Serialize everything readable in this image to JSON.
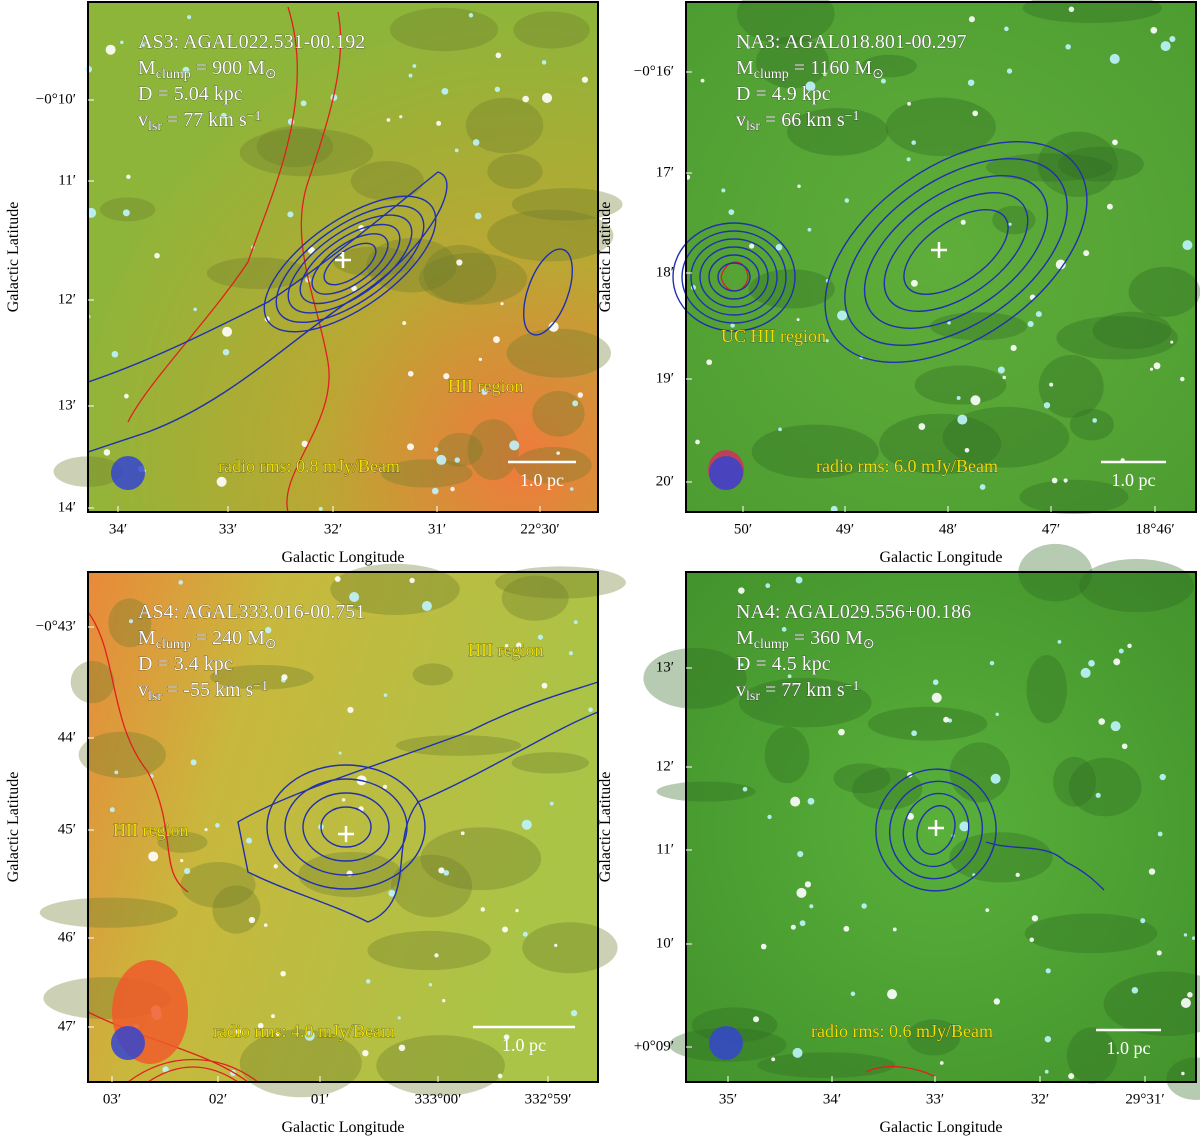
{
  "figure": {
    "panels": [
      {
        "info": [
          [
            {
              "t": "AS3: AGAL022.531-00.192"
            }
          ],
          [
            {
              "t": "M"
            },
            {
              "t": "clump",
              "sub": true
            },
            {
              "t": " = 900 M"
            },
            {
              "t": "⊙",
              "sub": true
            }
          ],
          [
            {
              "t": "D = 5.04 kpc"
            }
          ],
          [
            {
              "t": "v"
            },
            {
              "t": "lsr",
              "sub": true
            },
            {
              "t": " = 77 km s"
            },
            {
              "t": "−1",
              "sup": true
            }
          ]
        ],
        "annotations": [
          "HII region"
        ],
        "rms": "radio rms: 0.8 mJy/Beam",
        "scale": "1.0 pc",
        "yticks": [
          "−0°10′",
          "11′",
          "12′",
          "13′",
          "14′"
        ],
        "xticks": [
          "34′",
          "33′",
          "32′",
          "31′",
          "22°30′"
        ],
        "xlabel": "Galactic Longitude",
        "ylabel": "Galactic Latitude"
      },
      {
        "info": [
          [
            {
              "t": "NA3: AGAL018.801-00.297"
            }
          ],
          [
            {
              "t": "M"
            },
            {
              "t": "clump",
              "sub": true
            },
            {
              "t": " = 1160 M"
            },
            {
              "t": "⊙",
              "sub": true
            }
          ],
          [
            {
              "t": "D = 4.9 kpc"
            }
          ],
          [
            {
              "t": "v"
            },
            {
              "t": "lsr",
              "sub": true
            },
            {
              "t": " = 66 km s"
            },
            {
              "t": "−1",
              "sup": true
            }
          ]
        ],
        "annotations": [
          "UC HII region"
        ],
        "rms": "radio rms: 6.0 mJy/Beam",
        "scale": "1.0 pc",
        "yticks": [
          "−0°16′",
          "17′",
          "18′",
          "19′",
          "20′"
        ],
        "xticks": [
          "50′",
          "49′",
          "48′",
          "47′",
          "18°46′"
        ],
        "xlabel": "Galactic Longitude",
        "ylabel": "Galactic Latitude"
      },
      {
        "info": [
          [
            {
              "t": "AS4: AGAL333.016-00.751"
            }
          ],
          [
            {
              "t": "M"
            },
            {
              "t": "clump",
              "sub": true
            },
            {
              "t": " = 240 M"
            },
            {
              "t": "⊙",
              "sub": true
            }
          ],
          [
            {
              "t": "D = 3.4 kpc"
            }
          ],
          [
            {
              "t": "v"
            },
            {
              "t": "lsr",
              "sub": true
            },
            {
              "t": " = -55 km s"
            },
            {
              "t": "−1",
              "sup": true
            }
          ]
        ],
        "annotations": [
          "HII region",
          "HII region"
        ],
        "rms": "radio rms: 4.0 mJy/Beam",
        "scale": "1.0 pc",
        "yticks": [
          "−0°43′",
          "44′",
          "45′",
          "46′",
          "47′"
        ],
        "xticks": [
          "03′",
          "02′",
          "01′",
          "333°00′",
          "332°59′"
        ],
        "xlabel": "Galactic Longitude",
        "ylabel": "Galactic Latitude"
      },
      {
        "info": [
          [
            {
              "t": "NA4: AGAL029.556+00.186"
            }
          ],
          [
            {
              "t": "M"
            },
            {
              "t": "clump",
              "sub": true
            },
            {
              "t": " = 360 M"
            },
            {
              "t": "⊙",
              "sub": true
            }
          ],
          [
            {
              "t": "D = 4.5 kpc"
            }
          ],
          [
            {
              "t": "v"
            },
            {
              "t": "lsr",
              "sub": true
            },
            {
              "t": " = 77 km s"
            },
            {
              "t": "−1",
              "sup": true
            }
          ]
        ],
        "annotations": [],
        "rms": "radio rms: 0.6 mJy/Beam",
        "scale": "1.0 pc",
        "yticks": [
          "13′",
          "12′",
          "11′",
          "10′",
          "+0°09′"
        ],
        "xticks": [
          "35′",
          "34′",
          "33′",
          "32′",
          "29°31′"
        ],
        "xlabel": "Galactic Longitude",
        "ylabel": "Galactic Latitude"
      }
    ]
  }
}
